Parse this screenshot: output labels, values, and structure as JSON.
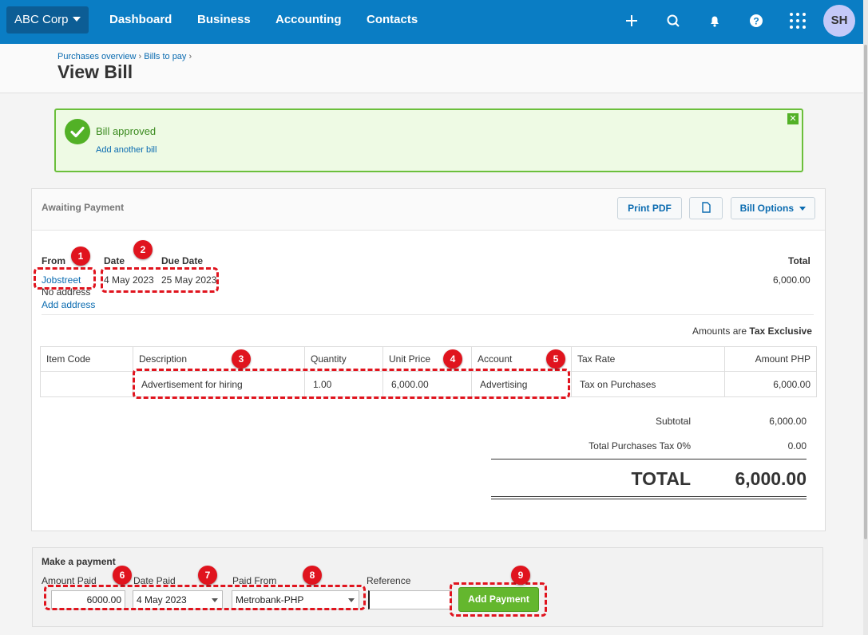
{
  "nav": {
    "org_name": "ABC Corp",
    "items": [
      "Dashboard",
      "Business",
      "Accounting",
      "Contacts"
    ],
    "icons": [
      "plus-icon",
      "search-icon",
      "bell-icon",
      "help-icon",
      "apps-grid-icon"
    ],
    "avatar_initials": "SH"
  },
  "header": {
    "breadcrumb": [
      "Purchases overview",
      "Bills to pay"
    ],
    "title": "View Bill"
  },
  "banner": {
    "message": "Bill approved",
    "link": "Add another bill"
  },
  "bill": {
    "status": "Awaiting Payment",
    "print_label": "Print PDF",
    "options_label": "Bill Options",
    "from_label": "From",
    "from_value": "Jobstreet",
    "no_address": "No address",
    "add_address": "Add address",
    "date_label": "Date",
    "date_value": "4 May 2023",
    "due_label": "Due Date",
    "due_value": "25 May 2023",
    "total_label": "Total",
    "total_value": "6,000.00",
    "amounts_prefix": "Amounts are",
    "amounts_mode": "Tax Exclusive",
    "columns": [
      "Item Code",
      "Description",
      "Quantity",
      "Unit Price",
      "Account",
      "Tax Rate",
      "Amount PHP"
    ],
    "row": {
      "item_code": "",
      "description": "Advertisement for hiring",
      "quantity": "1.00",
      "unit_price": "6,000.00",
      "account": "Advertising",
      "tax_rate": "Tax on Purchases",
      "amount": "6,000.00"
    },
    "subtotal_label": "Subtotal",
    "subtotal_value": "6,000.00",
    "tax_label": "Total Purchases Tax 0%",
    "tax_value": "0.00",
    "grand_label": "TOTAL",
    "grand_value": "6,000.00"
  },
  "payment": {
    "title": "Make a payment",
    "amount_label": "Amount Paid",
    "amount_value": "6000.00",
    "date_label": "Date Paid",
    "date_value": "4 May 2023",
    "from_label": "Paid From",
    "from_value": "Metrobank-PHP",
    "reference_label": "Reference",
    "reference_value": "",
    "button": "Add Payment"
  },
  "annotations": [
    "1",
    "2",
    "3",
    "4",
    "5",
    "6",
    "7",
    "8",
    "9"
  ],
  "colors": {
    "nav_bg": "#0a7dc4",
    "org_bg": "#0c5d95",
    "success_green": "#52b126",
    "annotation_red": "#e0141e",
    "link_blue": "#0a6bb0"
  }
}
